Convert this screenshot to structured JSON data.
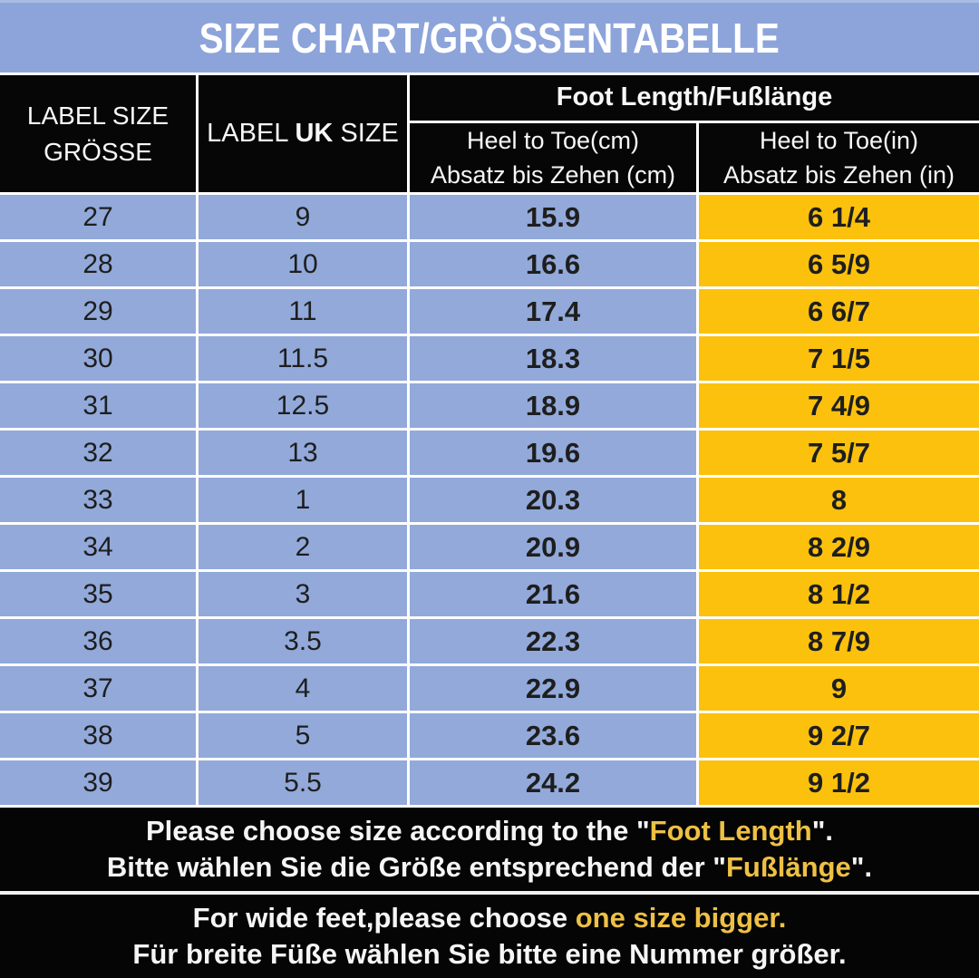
{
  "title": "SIZE CHART/GRÖSSENTABELLE",
  "table": {
    "label_size_header_line1": "LABEL SIZE",
    "label_size_header_line2": "GRÖSSE",
    "uk_header_pre": "LABEL ",
    "uk_header_bold": "UK",
    "uk_header_post": " SIZE",
    "foot_length_header": "Foot Length/Fußlänge",
    "cm_header_line1": "Heel to Toe(cm)",
    "cm_header_line2": "Absatz bis Zehen (cm)",
    "in_header_line1": "Heel to Toe(in)",
    "in_header_line2": "Absatz bis Zehen (in)"
  },
  "chart_data": {
    "type": "table",
    "title": "SIZE CHART/GRÖSSENTABELLE",
    "columns": [
      "LABEL SIZE GRÖSSE",
      "LABEL UK SIZE",
      "Foot Length/Fußlänge — Heel to Toe(cm) Absatz bis Zehen (cm)",
      "Foot Length/Fußlänge — Heel to Toe(in) Absatz bis Zehen (in)"
    ],
    "rows": [
      [
        "27",
        "9",
        "15.9",
        "6 1/4"
      ],
      [
        "28",
        "10",
        "16.6",
        "6 5/9"
      ],
      [
        "29",
        "11",
        "17.4",
        "6 6/7"
      ],
      [
        "30",
        "11.5",
        "18.3",
        "7 1/5"
      ],
      [
        "31",
        "12.5",
        "18.9",
        "7 4/9"
      ],
      [
        "32",
        "13",
        "19.6",
        "7 5/7"
      ],
      [
        "33",
        "1",
        "20.3",
        "8"
      ],
      [
        "34",
        "2",
        "20.9",
        "8 2/9"
      ],
      [
        "35",
        "3",
        "21.6",
        "8 1/2"
      ],
      [
        "36",
        "3.5",
        "22.3",
        "8 7/9"
      ],
      [
        "37",
        "4",
        "22.9",
        "9"
      ],
      [
        "38",
        "5",
        "23.6",
        "9 2/7"
      ],
      [
        "39",
        "5.5",
        "24.2",
        "9 1/2"
      ]
    ]
  },
  "notes": {
    "block1_line1": [
      {
        "t": "Please choose size according to the \"",
        "hl": false
      },
      {
        "t": "Foot Length",
        "hl": true
      },
      {
        "t": "\".",
        "hl": false
      }
    ],
    "block1_line2": [
      {
        "t": "Bitte wählen Sie die Größe entsprechend der \"",
        "hl": false
      },
      {
        "t": "Fußlänge",
        "hl": true
      },
      {
        "t": "\".",
        "hl": false
      }
    ],
    "block2_line1": [
      {
        "t": "For wide feet,please choose ",
        "hl": false
      },
      {
        "t": "one size bigger.",
        "hl": true
      }
    ],
    "block2_line2": [
      {
        "t": "Für breite Füße wählen Sie bitte eine Nummer größer.",
        "hl": false
      }
    ]
  },
  "colors": {
    "title_bar_blue": "#8CA4DA",
    "row_blue": "#92A9DA",
    "cell_yellow": "#FCC10D",
    "header_black": "#060606",
    "highlight_gold": "#EEC044",
    "grid_line_white": "#FFFFFF"
  }
}
